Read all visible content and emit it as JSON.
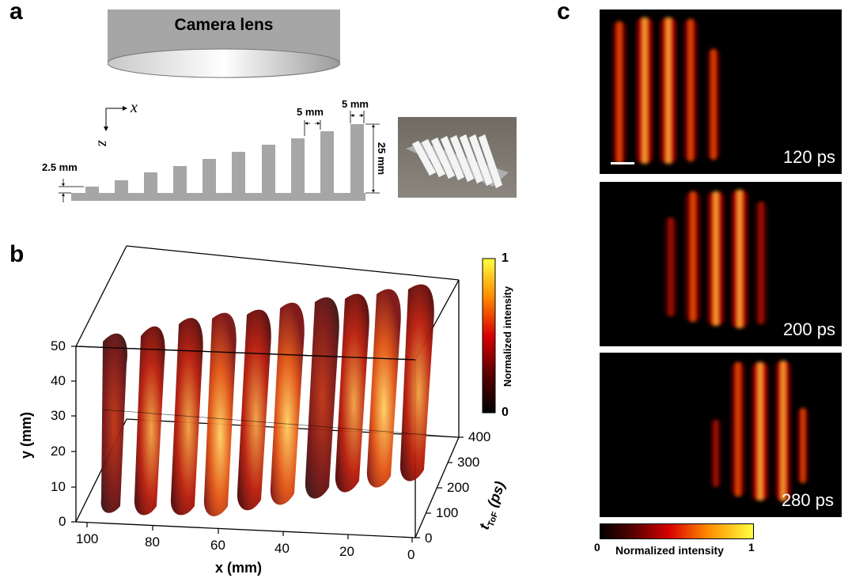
{
  "panels": {
    "a": {
      "letter": "a",
      "camera_label": "Camera lens",
      "axis_x": "x",
      "axis_z": "z",
      "dim_step_height": "2.5 mm",
      "dim_gap": "5 mm",
      "dim_bar_width": "5 mm",
      "dim_total_height": "25 mm"
    },
    "b": {
      "letter": "b",
      "y_axis_title": "y (mm)",
      "x_axis_title": "x (mm)",
      "t_axis_title": "t",
      "t_axis_sub": "ToF",
      "t_axis_unit": " (ps)",
      "y_ticks": [
        "50",
        "40",
        "30",
        "20",
        "10",
        "0"
      ],
      "x_ticks": [
        "100",
        "80",
        "60",
        "40",
        "20",
        "0"
      ],
      "t_ticks": [
        "400",
        "300",
        "200",
        "100",
        "0"
      ],
      "colorbar": {
        "title": "Normalized intensity",
        "max": "1",
        "min": "0"
      }
    },
    "c": {
      "letter": "c",
      "frames": [
        {
          "time": "120 ps"
        },
        {
          "time": "200 ps"
        },
        {
          "time": "280 ps"
        }
      ],
      "colorbar": {
        "title": "Normalized intensity",
        "min": "0",
        "max": "1"
      }
    }
  },
  "colors": {
    "gray": "#a6a6a6",
    "hot_dark": "#3a0000",
    "hot_red": "#e00000",
    "hot_orange": "#ff7a00",
    "hot_yellow": "#ffff30"
  }
}
